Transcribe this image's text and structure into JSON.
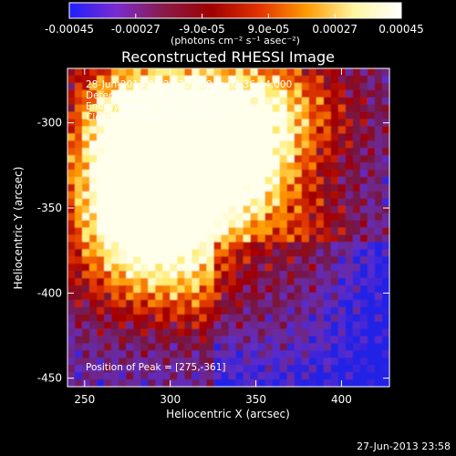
{
  "colorbar": {
    "tick_labels": [
      "-0.00045",
      "-0.00027",
      "-9.0e-05",
      "9.0e-05",
      "0.00027",
      "0.00045"
    ],
    "tick_values": [
      -0.00045,
      -0.00027,
      -9e-05,
      9e-05,
      0.00027,
      0.00045
    ],
    "range": [
      -0.00045,
      0.00045
    ],
    "unit_label": "(photons cm⁻² s⁻¹ asec⁻²)",
    "colors": [
      "#1f1fff",
      "#7a2bd0",
      "#8a1a48",
      "#a00000",
      "#e23200",
      "#ff9a00",
      "#fff6a0",
      "#ffffff"
    ]
  },
  "title": "Reconstructed RHESSI Image",
  "info": {
    "time_range": "28-Jun-2013 02:32:32.000 to 02:36:14.000",
    "detectors": "Detectors: 3F 5F 6F 7F 8F 9F, Att 0",
    "energy_range": "Energy Range: 25.0 - 50.0 keV",
    "method_counts": "Clean     Total counts: 9.31E+03",
    "peak_position": "Position of Peak = [275,-361]"
  },
  "axes": {
    "xlabel": "Heliocentric X (arcsec)",
    "ylabel": "Heliocentric Y (arcsec)",
    "xlim": [
      240,
      428
    ],
    "ylim": [
      -455,
      -268
    ],
    "xticks": [
      250,
      300,
      350,
      400
    ],
    "yticks": [
      -300,
      -350,
      -400,
      -450
    ],
    "xtick_labels": [
      "250",
      "300",
      "350",
      "400"
    ],
    "ytick_labels": [
      "-300",
      "-350",
      "-400",
      "-450"
    ]
  },
  "timestamp": "27-Jun-2013 23:58"
}
